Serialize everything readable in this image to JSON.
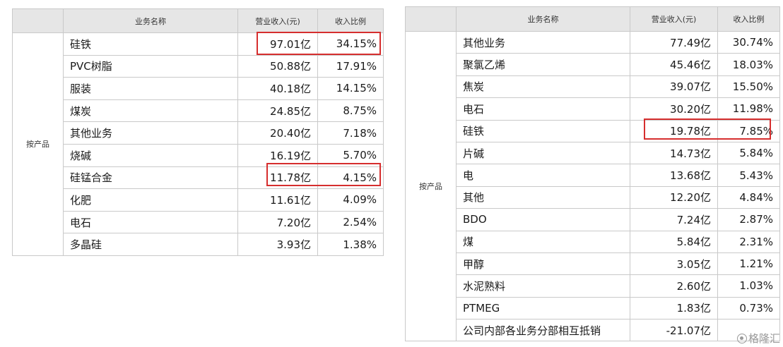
{
  "left": {
    "headers": [
      "",
      "业务名称",
      "营业收入(元)",
      "收入比例"
    ],
    "segment": "按产品",
    "rows": [
      {
        "name": "硅铁",
        "revenue": "97.01亿",
        "ratio": "34.15%"
      },
      {
        "name": "PVC树脂",
        "revenue": "50.88亿",
        "ratio": "17.91%"
      },
      {
        "name": "服装",
        "revenue": "40.18亿",
        "ratio": "14.15%"
      },
      {
        "name": "煤炭",
        "revenue": "24.85亿",
        "ratio": "8.75%"
      },
      {
        "name": "其他业务",
        "revenue": "20.40亿",
        "ratio": "7.18%"
      },
      {
        "name": "烧碱",
        "revenue": "16.19亿",
        "ratio": "5.70%"
      },
      {
        "name": "硅锰合金",
        "revenue": "11.78亿",
        "ratio": "4.15%"
      },
      {
        "name": "化肥",
        "revenue": "11.61亿",
        "ratio": "4.09%"
      },
      {
        "name": "电石",
        "revenue": "7.20亿",
        "ratio": "2.54%"
      },
      {
        "name": "多晶硅",
        "revenue": "3.93亿",
        "ratio": "1.38%"
      }
    ]
  },
  "right": {
    "headers": [
      "",
      "业务名称",
      "营业收入(元)",
      "收入比例"
    ],
    "segment": "按产品",
    "rows": [
      {
        "name": "其他业务",
        "revenue": "77.49亿",
        "ratio": "30.74%"
      },
      {
        "name": "聚氯乙烯",
        "revenue": "45.46亿",
        "ratio": "18.03%"
      },
      {
        "name": "焦炭",
        "revenue": "39.07亿",
        "ratio": "15.50%"
      },
      {
        "name": "电石",
        "revenue": "30.20亿",
        "ratio": "11.98%"
      },
      {
        "name": "硅铁",
        "revenue": "19.78亿",
        "ratio": "7.85%"
      },
      {
        "name": "片碱",
        "revenue": "14.73亿",
        "ratio": "5.84%"
      },
      {
        "name": "电",
        "revenue": "13.68亿",
        "ratio": "5.43%"
      },
      {
        "name": "其他",
        "revenue": "12.20亿",
        "ratio": "4.84%"
      },
      {
        "name": "BDO",
        "revenue": "7.24亿",
        "ratio": "2.87%"
      },
      {
        "name": "煤",
        "revenue": "5.84亿",
        "ratio": "2.31%"
      },
      {
        "name": "甲醇",
        "revenue": "3.05亿",
        "ratio": "1.21%"
      },
      {
        "name": "水泥熟料",
        "revenue": "2.60亿",
        "ratio": "1.03%"
      },
      {
        "name": "PTMEG",
        "revenue": "1.83亿",
        "ratio": "0.73%"
      },
      {
        "name": "公司内部各业务分部相互抵销",
        "revenue": "-21.07亿",
        "ratio": ""
      }
    ]
  },
  "colors": {
    "highlight": "#d62e2e",
    "header_bg": "#e6e6e6",
    "border": "#c9c9c9"
  },
  "watermark": {
    "icon": "logo-icon",
    "text": "格隆汇"
  }
}
